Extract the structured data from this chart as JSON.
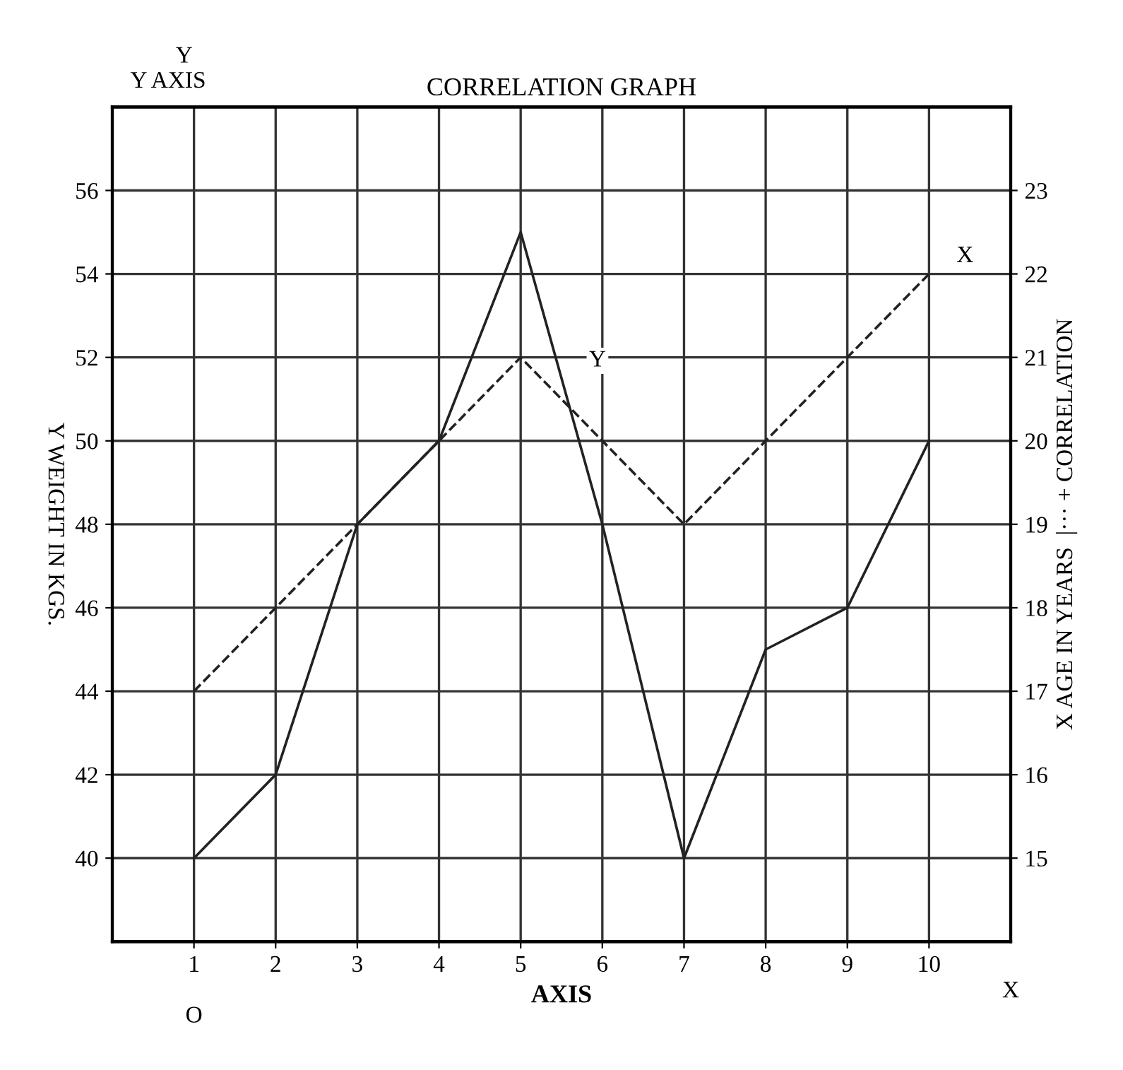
{
  "chart_data": {
    "type": "line",
    "title": "CORRELATION GRAPH",
    "xlabel": "AXIS",
    "ylabel": "Y WEIGHT IN KGS.",
    "y2label": "X AGE IN YEARS  |··· + CORRELATION",
    "x": [
      1,
      2,
      3,
      4,
      5,
      6,
      7,
      8,
      9,
      10
    ],
    "series": [
      {
        "name": "Y",
        "color": "#222222",
        "line_style": "solid",
        "values": [
          40,
          42,
          48,
          50,
          55,
          48,
          40,
          45,
          46,
          50
        ]
      },
      {
        "name": "X",
        "color": "#222222",
        "line_style": "dashed",
        "axis": "y2",
        "values": [
          17,
          18,
          19,
          20,
          21,
          20,
          19,
          20,
          21,
          22
        ]
      }
    ],
    "xlim": [
      0,
      11
    ],
    "xticks": [
      1,
      2,
      3,
      4,
      5,
      6,
      7,
      8,
      9,
      10
    ],
    "ylim": [
      38,
      58
    ],
    "yticks": [
      40,
      42,
      44,
      46,
      48,
      50,
      52,
      54,
      56
    ],
    "y2lim": [
      14,
      24
    ],
    "y2ticks": [
      15,
      16,
      17,
      18,
      19,
      20,
      21,
      22,
      23
    ],
    "grid": true,
    "marker": "none",
    "annotations": [
      "Y AXIS",
      "Y",
      "X",
      "O"
    ]
  }
}
